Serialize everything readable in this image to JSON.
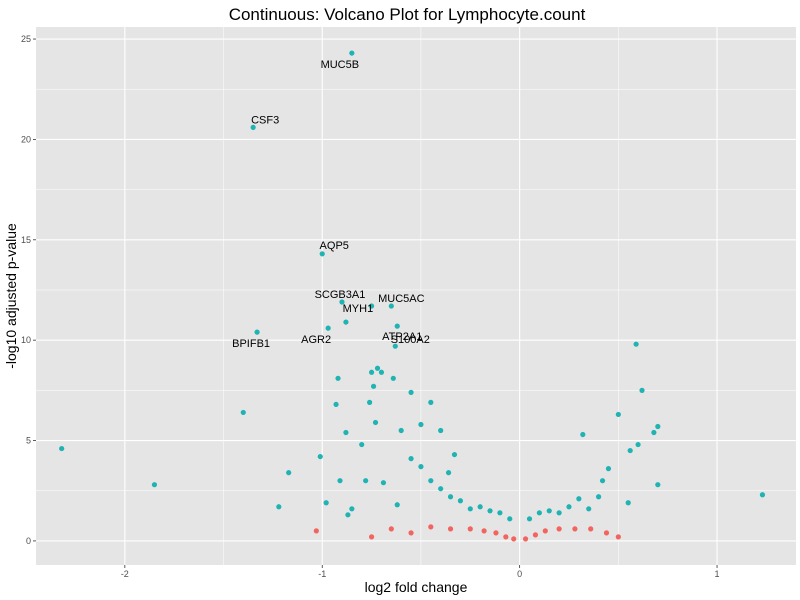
{
  "chart_data": {
    "type": "scatter",
    "title": "Continuous: Volcano Plot for Lymphocyte.count",
    "xlabel": "log2 fold change",
    "ylabel": "-log10 adjusted p-value",
    "xlim": [
      -2.45,
      1.4
    ],
    "ylim": [
      -1.2,
      25.6
    ],
    "x_ticks": [
      -2,
      -1,
      0,
      1
    ],
    "x_tick_labels": [
      "-2",
      "-1",
      "0",
      "1"
    ],
    "y_ticks": [
      0,
      5,
      10,
      15,
      20,
      25
    ],
    "y_tick_labels": [
      "0",
      "5",
      "10",
      "15",
      "20",
      "25"
    ],
    "grid": true,
    "legend": "none",
    "colors": {
      "panel_background": "#e5e5e5",
      "grid": "#ffffff",
      "significant": "#1fb3b3",
      "not_significant": "#f2645f"
    },
    "series": [
      {
        "color": "#1fb3b3",
        "points": [
          [
            -0.85,
            24.3
          ],
          [
            -1.35,
            20.6
          ],
          [
            -1.0,
            14.3
          ],
          [
            -0.9,
            11.9
          ],
          [
            -0.75,
            11.7
          ],
          [
            -0.65,
            11.7
          ],
          [
            -0.88,
            10.9
          ],
          [
            -0.62,
            10.7
          ],
          [
            -0.97,
            10.6
          ],
          [
            -1.33,
            10.4
          ],
          [
            -0.63,
            9.7
          ],
          [
            -2.32,
            4.6
          ],
          [
            -1.85,
            2.8
          ],
          [
            -1.4,
            6.4
          ],
          [
            -1.17,
            3.4
          ],
          [
            -1.22,
            1.7
          ],
          [
            -1.01,
            4.2
          ],
          [
            -0.98,
            1.9
          ],
          [
            -0.92,
            8.1
          ],
          [
            -0.93,
            6.8
          ],
          [
            -0.91,
            3.0
          ],
          [
            -0.88,
            5.4
          ],
          [
            -0.87,
            1.3
          ],
          [
            -0.75,
            8.4
          ],
          [
            -0.72,
            8.6
          ],
          [
            -0.7,
            8.4
          ],
          [
            -0.74,
            7.7
          ],
          [
            -0.76,
            6.9
          ],
          [
            -0.73,
            5.9
          ],
          [
            -0.8,
            4.8
          ],
          [
            -0.85,
            1.6
          ],
          [
            -0.78,
            3.0
          ],
          [
            -0.64,
            8.1
          ],
          [
            -0.55,
            7.4
          ],
          [
            -0.6,
            5.5
          ],
          [
            -0.5,
            5.8
          ],
          [
            -0.45,
            6.9
          ],
          [
            -0.4,
            5.5
          ],
          [
            -0.33,
            4.3
          ],
          [
            -0.36,
            3.4
          ],
          [
            -0.69,
            2.9
          ],
          [
            -0.62,
            1.8
          ],
          [
            0.59,
            9.8
          ],
          [
            0.62,
            7.5
          ],
          [
            0.5,
            6.3
          ],
          [
            0.7,
            5.7
          ],
          [
            0.68,
            5.4
          ],
          [
            0.6,
            4.8
          ],
          [
            0.56,
            4.5
          ],
          [
            0.32,
            5.3
          ],
          [
            0.7,
            2.8
          ],
          [
            1.23,
            2.3
          ],
          [
            0.55,
            1.9
          ],
          [
            0.45,
            3.6
          ],
          [
            0.42,
            3.0
          ],
          [
            0.4,
            2.2
          ],
          [
            0.35,
            1.6
          ],
          [
            0.3,
            2.1
          ],
          [
            0.25,
            1.7
          ],
          [
            0.2,
            1.4
          ],
          [
            0.15,
            1.5
          ],
          [
            0.1,
            1.4
          ],
          [
            0.05,
            1.1
          ],
          [
            -0.05,
            1.1
          ],
          [
            -0.1,
            1.4
          ],
          [
            -0.15,
            1.5
          ],
          [
            -0.2,
            1.7
          ],
          [
            -0.25,
            1.6
          ],
          [
            -0.3,
            2.0
          ],
          [
            -0.35,
            2.2
          ],
          [
            -0.4,
            2.6
          ],
          [
            -0.45,
            3.0
          ],
          [
            -0.5,
            3.7
          ],
          [
            -0.55,
            4.1
          ]
        ]
      },
      {
        "color": "#f2645f",
        "points": [
          [
            -1.03,
            0.5
          ],
          [
            -0.75,
            0.2
          ],
          [
            -0.65,
            0.6
          ],
          [
            -0.55,
            0.4
          ],
          [
            -0.45,
            0.7
          ],
          [
            -0.35,
            0.6
          ],
          [
            -0.25,
            0.6
          ],
          [
            -0.18,
            0.5
          ],
          [
            -0.12,
            0.4
          ],
          [
            -0.07,
            0.2
          ],
          [
            -0.03,
            0.1
          ],
          [
            0.03,
            0.1
          ],
          [
            0.08,
            0.3
          ],
          [
            0.13,
            0.5
          ],
          [
            0.2,
            0.6
          ],
          [
            0.28,
            0.6
          ],
          [
            0.36,
            0.6
          ],
          [
            0.44,
            0.4
          ],
          [
            0.5,
            0.2
          ]
        ]
      }
    ],
    "annotations": [
      {
        "text": "MUC5B",
        "x": -0.85,
        "y": 24.3
      },
      {
        "text": "CSF3",
        "x": -1.35,
        "y": 20.6
      },
      {
        "text": "AQP5",
        "x": -1.0,
        "y": 14.3
      },
      {
        "text": "SCGB3A1",
        "x": -0.9,
        "y": 11.9
      },
      {
        "text": "MUC5AC",
        "x": -0.65,
        "y": 11.7
      },
      {
        "text": "MYH1",
        "x": -0.88,
        "y": 10.9
      },
      {
        "text": "ATP2A1",
        "x": -0.62,
        "y": 10.7
      },
      {
        "text": "AGR2",
        "x": -0.97,
        "y": 10.6
      },
      {
        "text": "BPIFB1",
        "x": -1.33,
        "y": 10.4
      },
      {
        "text": "S100A2",
        "x": -0.63,
        "y": 9.7
      }
    ]
  }
}
